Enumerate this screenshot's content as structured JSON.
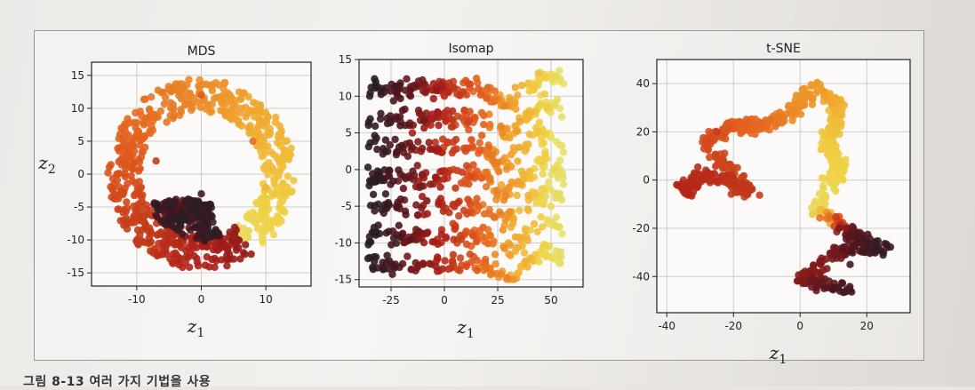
{
  "caption": "그림 8-13 여러 가지 기법을 사용",
  "chart_data": [
    {
      "type": "scatter",
      "title": "MDS",
      "xlabel": "z1",
      "ylabel": "z2",
      "xlim": [
        -17,
        17
      ],
      "ylim": [
        -17,
        17
      ],
      "xticks": [
        -10,
        0,
        10
      ],
      "yticks": [
        -15,
        -10,
        -5,
        0,
        5,
        10,
        15
      ],
      "grid": true,
      "colormap": "hot",
      "shape": "ring with inner dark cluster",
      "points": [
        {
          "x": -5,
          "y": -5,
          "t": 0.05
        },
        {
          "x": -3,
          "y": -7,
          "t": 0.08
        },
        {
          "x": 0,
          "y": -3,
          "t": 0.12
        },
        {
          "x": -7,
          "y": 2,
          "t": 0.45
        },
        {
          "x": 0,
          "y": 12,
          "t": 0.55
        },
        {
          "x": 8,
          "y": 5,
          "t": 0.6
        },
        {
          "x": 10,
          "y": -2,
          "t": 0.8
        },
        {
          "x": 5,
          "y": -10,
          "t": 0.9
        },
        {
          "x": -8,
          "y": -11,
          "t": 0.85
        }
      ]
    },
    {
      "type": "scatter",
      "title": "Isomap",
      "xlabel": "z1",
      "ylabel": "",
      "xlim": [
        -40,
        65
      ],
      "ylim": [
        -16,
        15
      ],
      "xticks": [
        -25,
        0,
        25,
        50
      ],
      "yticks": [
        -15,
        -10,
        -5,
        0,
        5,
        10,
        15
      ],
      "grid": true,
      "colormap": "hot",
      "shape": "horizontal bands, dark left to yellow right",
      "points": [
        {
          "x": -35,
          "y": 10,
          "t": 0.05
        },
        {
          "x": -35,
          "y": -12,
          "t": 0.05
        },
        {
          "x": -15,
          "y": 5,
          "t": 0.35
        },
        {
          "x": 0,
          "y": 10,
          "t": 0.45
        },
        {
          "x": 25,
          "y": 0,
          "t": 0.75
        },
        {
          "x": 50,
          "y": -5,
          "t": 0.95
        }
      ]
    },
    {
      "type": "scatter",
      "title": "t-SNE",
      "xlabel": "z1",
      "ylabel": "",
      "xlim": [
        -43,
        33
      ],
      "ylim": [
        -55,
        50
      ],
      "xticks": [
        -40,
        -20,
        0,
        20
      ],
      "yticks": [
        -40,
        -20,
        0,
        20,
        40
      ],
      "grid": true,
      "colormap": "hot",
      "shape": "serpentine chain of clusters",
      "points": [
        {
          "x": -35,
          "y": 0,
          "t": 0.4
        },
        {
          "x": -25,
          "y": 20,
          "t": 0.45
        },
        {
          "x": 5,
          "y": 40,
          "t": 0.75
        },
        {
          "x": 10,
          "y": 5,
          "t": 0.9
        },
        {
          "x": 15,
          "y": -35,
          "t": 0.1
        },
        {
          "x": 25,
          "y": -30,
          "t": 0.05
        }
      ]
    }
  ]
}
